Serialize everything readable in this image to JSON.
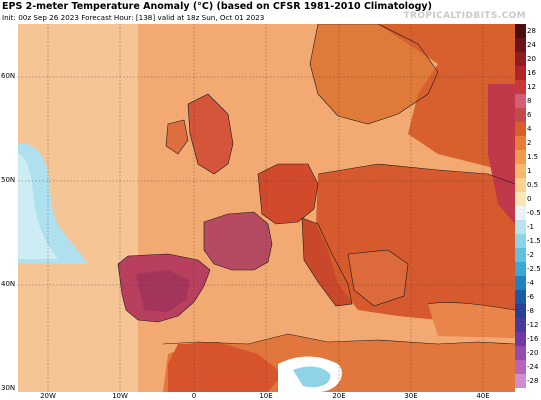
{
  "header": {
    "title": "EPS 2-meter Temperature Anomaly (°C) (based on CFSR 1981-2010 Climatology)",
    "subtitle": "Init: 00z Sep 26 2023   Forecast Hour: [138]   valid at 18z Sun, Oct 01 2023",
    "brand": "TROPICALTIDBITS.COM"
  },
  "axes": {
    "lat_labels": [
      "60N",
      "50N",
      "40N",
      "30N"
    ],
    "lon_labels": [
      "20W",
      "10W",
      "0",
      "10E",
      "20E",
      "30E",
      "40E"
    ]
  },
  "legend": {
    "labels": [
      "28",
      "24",
      "20",
      "16",
      "12",
      "8",
      "6",
      "4",
      "2",
      "1.5",
      "1",
      "0.5",
      "0",
      "-0.5",
      "-1",
      "-1.5",
      "-2",
      "-2.5",
      "-4",
      "-6",
      "-8",
      "-12",
      "-16",
      "-20",
      "-24",
      "-28"
    ],
    "colors": [
      "#4a0d10",
      "#6b1419",
      "#8e1c22",
      "#b1252a",
      "#c83a3a",
      "#d35d74",
      "#c24a4a",
      "#d85f2a",
      "#e87a3a",
      "#f29a4e",
      "#f6b86c",
      "#f9d38e",
      "#fbe6b6",
      "#e6f4f7",
      "#b9e4ee",
      "#8fd3e6",
      "#63c0dc",
      "#3aa8d2",
      "#2380c0",
      "#1c5aa8",
      "#2a3f96",
      "#4a3a9c",
      "#6e3aa6",
      "#944aae",
      "#b564b6",
      "#d08ccc"
    ]
  },
  "map": {
    "ocean_color": "#f4b98a",
    "land_warm_color": "#d85a2e",
    "hot_anomaly_color": "#b8405e",
    "cool_anomaly_color": "#aee0ee",
    "border_color": "#1a1a1a"
  }
}
